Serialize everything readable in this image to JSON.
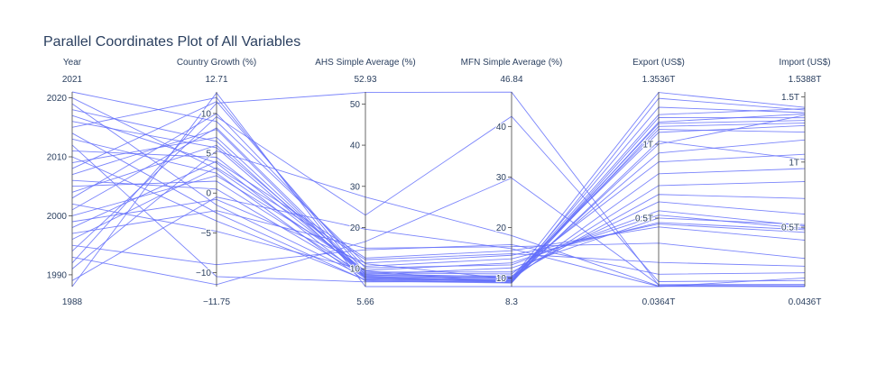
{
  "chart_data": {
    "type": "parallel_coordinates",
    "title": "Parallel Coordinates Plot of All Variables",
    "line_color": "#636efa",
    "dimensions": [
      {
        "key": "year",
        "label": "Year",
        "range": [
          1988,
          2021
        ],
        "range_labels": [
          "1988",
          "2021"
        ],
        "ticks": [
          {
            "v": 1990,
            "t": "1990"
          },
          {
            "v": 2000,
            "t": "2000"
          },
          {
            "v": 2010,
            "t": "2010"
          },
          {
            "v": 2020,
            "t": "2020"
          }
        ]
      },
      {
        "key": "growth",
        "label": "Country Growth (%)",
        "range": [
          -11.75,
          12.71
        ],
        "range_labels": [
          "−11.75",
          "12.71"
        ],
        "ticks": [
          {
            "v": -10,
            "t": "−10"
          },
          {
            "v": -5,
            "t": "−5"
          },
          {
            "v": 0,
            "t": "0"
          },
          {
            "v": 5,
            "t": "5"
          },
          {
            "v": 10,
            "t": "10"
          }
        ]
      },
      {
        "key": "ahs",
        "label": "AHS Simple Average (%)",
        "range": [
          5.66,
          52.93
        ],
        "range_labels": [
          "5.66",
          "52.93"
        ],
        "ticks": [
          {
            "v": 10,
            "t": "10"
          },
          {
            "v": 20,
            "t": "20"
          },
          {
            "v": 30,
            "t": "30"
          },
          {
            "v": 40,
            "t": "40"
          },
          {
            "v": 50,
            "t": "50"
          }
        ]
      },
      {
        "key": "mfn",
        "label": "MFN Simple Average (%)",
        "range": [
          8.3,
          46.84
        ],
        "range_labels": [
          "8.3",
          "46.84"
        ],
        "ticks": [
          {
            "v": 10,
            "t": "10"
          },
          {
            "v": 20,
            "t": "20"
          },
          {
            "v": 30,
            "t": "30"
          },
          {
            "v": 40,
            "t": "40"
          }
        ]
      },
      {
        "key": "export",
        "label": "Export (US$)",
        "range": [
          0.0364,
          1.3536
        ],
        "range_labels": [
          "0.0364T",
          "1.3536T"
        ],
        "ticks": [
          {
            "v": 0.5,
            "t": "0.5T"
          },
          {
            "v": 1.0,
            "t": "1T"
          }
        ]
      },
      {
        "key": "import",
        "label": "Import (US$)",
        "range": [
          0.0436,
          1.5388
        ],
        "range_labels": [
          "0.0436T",
          "1.5388T"
        ],
        "ticks": [
          {
            "v": 0.5,
            "t": "0.5T"
          },
          {
            "v": 1.0,
            "t": "1T"
          },
          {
            "v": 1.5,
            "t": "1.5T"
          }
        ]
      }
    ],
    "records": [
      [
        2021,
        9.0,
        11.2,
        9.8,
        1.35,
        1.42
      ],
      [
        2020,
        3.0,
        9.5,
        9.0,
        1.31,
        1.4
      ],
      [
        2019,
        -1.5,
        8.0,
        9.5,
        1.25,
        1.38
      ],
      [
        2018,
        6.5,
        7.8,
        9.4,
        1.2,
        1.41
      ],
      [
        2017,
        3.8,
        7.5,
        9.6,
        1.14,
        1.32
      ],
      [
        2016,
        5.7,
        8.2,
        9.9,
        1.1,
        1.23
      ],
      [
        2015,
        12.0,
        7.6,
        9.2,
        1.12,
        1.3
      ],
      [
        2014,
        -2.5,
        7.2,
        9.1,
        1.18,
        1.34
      ],
      [
        2013,
        2.5,
        7.0,
        9.0,
        1.15,
        1.37
      ],
      [
        2012,
        -10.5,
        6.8,
        9.3,
        1.02,
        1.02
      ],
      [
        2011,
        4.5,
        8.8,
        10.2,
        1.08,
        1.28
      ],
      [
        2010,
        -3.5,
        7.3,
        9.4,
        1.0,
        1.36
      ],
      [
        2009,
        7.0,
        8.5,
        10.0,
        0.94,
        1.17
      ],
      [
        2008,
        11.5,
        9.0,
        10.8,
        0.88,
        1.06
      ],
      [
        2007,
        8.0,
        7.9,
        9.7,
        0.8,
        0.95
      ],
      [
        2006,
        0.5,
        8.1,
        10.1,
        0.72,
        0.85
      ],
      [
        2005,
        1.5,
        8.4,
        10.4,
        0.66,
        0.72
      ],
      [
        2004,
        6.0,
        9.2,
        11.2,
        0.61,
        0.6
      ],
      [
        2003,
        10.0,
        10.2,
        12.6,
        0.55,
        0.51
      ],
      [
        2002,
        -4.8,
        9.6,
        13.0,
        0.52,
        0.49
      ],
      [
        2001,
        8.2,
        8.6,
        12.0,
        0.5,
        0.52
      ],
      [
        2000,
        2.2,
        10.6,
        13.8,
        0.47,
        0.48
      ],
      [
        1999,
        -0.8,
        11.4,
        14.5,
        0.46,
        0.46
      ],
      [
        1998,
        4.0,
        12.6,
        15.4,
        0.44,
        0.4
      ],
      [
        1997,
        -2.2,
        15.0,
        16.2,
        0.33,
        0.26
      ],
      [
        1996,
        3.2,
        12.2,
        14.8,
        0.2,
        0.2
      ],
      [
        1995,
        -9.0,
        14.6,
        16.6,
        0.12,
        0.15
      ],
      [
        1994,
        9.6,
        23.0,
        42.0,
        0.07,
        0.09
      ],
      [
        1993,
        -11.5,
        16.6,
        29.8,
        0.05,
        0.06
      ],
      [
        1992,
        11.3,
        52.8,
        46.8,
        0.045,
        0.05
      ],
      [
        1991,
        5.3,
        27.4,
        18.4,
        0.04,
        0.045
      ],
      [
        1989,
        -0.5,
        19.6,
        15.8,
        0.038,
        0.0436
      ],
      [
        1988,
        12.6,
        5.66,
        8.3,
        0.0364,
        0.11
      ]
    ]
  }
}
